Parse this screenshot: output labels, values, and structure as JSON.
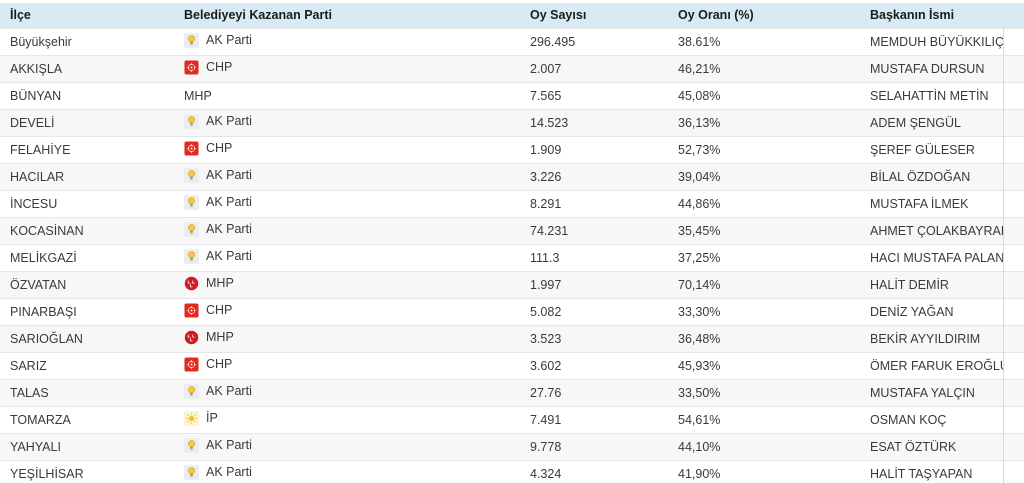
{
  "table": {
    "columns": [
      {
        "key": "district",
        "label": "İlçe"
      },
      {
        "key": "party",
        "label": "Belediyeyi Kazanan Parti"
      },
      {
        "key": "votes",
        "label": "Oy Sayısı"
      },
      {
        "key": "percent",
        "label": "Oy Oranı (%)"
      },
      {
        "key": "mayor",
        "label": "Başkanın İsmi"
      }
    ],
    "rows": [
      {
        "district": "Büyükşehir",
        "party": "AK Parti",
        "party_icon": "akparti-bulb-icon",
        "votes": "296.495",
        "percent": "38.61%",
        "mayor": "MEMDUH BÜYÜKKILIÇ"
      },
      {
        "district": "AKKIŞLA",
        "party": "CHP",
        "party_icon": "chp-flag-icon",
        "votes": "2.007",
        "percent": "46,21%",
        "mayor": "MUSTAFA DURSUN"
      },
      {
        "district": "BÜNYAN",
        "party": "MHP",
        "party_icon": "none",
        "votes": "7.565",
        "percent": "45,08%",
        "mayor": "SELAHATTİN METİN"
      },
      {
        "district": "DEVELİ",
        "party": "AK Parti",
        "party_icon": "akparti-bulb-icon",
        "votes": "14.523",
        "percent": "36,13%",
        "mayor": "ADEM ŞENGÜL"
      },
      {
        "district": "FELAHİYE",
        "party": "CHP",
        "party_icon": "chp-flag-icon",
        "votes": "1.909",
        "percent": "52,73%",
        "mayor": "ŞEREF GÜLESER"
      },
      {
        "district": "HACILAR",
        "party": "AK Parti",
        "party_icon": "akparti-bulb-icon",
        "votes": "3.226",
        "percent": "39,04%",
        "mayor": "BİLAL ÖZDOĞAN"
      },
      {
        "district": "İNCESU",
        "party": "AK Parti",
        "party_icon": "akparti-bulb-icon",
        "votes": "8.291",
        "percent": "44,86%",
        "mayor": "MUSTAFA İLMEK"
      },
      {
        "district": "KOCASİNAN",
        "party": "AK Parti",
        "party_icon": "akparti-bulb-icon",
        "votes": "74.231",
        "percent": "35,45%",
        "mayor": "AHMET ÇOLAKBAYRAKDAR"
      },
      {
        "district": "MELİKGAZİ",
        "party": "AK Parti",
        "party_icon": "akparti-bulb-icon",
        "votes": "111.3",
        "percent": "37,25%",
        "mayor": "HACI MUSTAFA PALANCIOĞLU"
      },
      {
        "district": "ÖZVATAN",
        "party": "MHP",
        "party_icon": "mhp-crescents-icon",
        "votes": "1.997",
        "percent": "70,14%",
        "mayor": "HALİT DEMİR"
      },
      {
        "district": "PINARBAŞI",
        "party": "CHP",
        "party_icon": "chp-flag-icon",
        "votes": "5.082",
        "percent": "33,30%",
        "mayor": "DENİZ YAĞAN"
      },
      {
        "district": "SARIOĞLAN",
        "party": "MHP",
        "party_icon": "mhp-crescents-icon",
        "votes": "3.523",
        "percent": "36,48%",
        "mayor": "BEKİR AYYILDIRIM"
      },
      {
        "district": "SARIZ",
        "party": "CHP",
        "party_icon": "chp-flag-icon",
        "votes": "3.602",
        "percent": "45,93%",
        "mayor": "ÖMER FARUK EROĞLU"
      },
      {
        "district": "TALAS",
        "party": "AK Parti",
        "party_icon": "akparti-bulb-icon",
        "votes": "27.76",
        "percent": "33,50%",
        "mayor": "MUSTAFA YALÇIN"
      },
      {
        "district": "TOMARZA",
        "party": "İP",
        "party_icon": "iyi-sun-icon",
        "votes": "7.491",
        "percent": "54,61%",
        "mayor": "OSMAN KOÇ"
      },
      {
        "district": "YAHYALI",
        "party": "AK Parti",
        "party_icon": "akparti-bulb-icon",
        "votes": "9.778",
        "percent": "44,10%",
        "mayor": "ESAT ÖZTÜRK"
      },
      {
        "district": "YEŞİLHİSAR",
        "party": "AK Parti",
        "party_icon": "akparti-bulb-icon",
        "votes": "4.324",
        "percent": "41,90%",
        "mayor": "HALİT TAŞYAPAN"
      }
    ]
  },
  "colors": {
    "header_bg": "#d8eaf4",
    "row_alt_bg": "#f7f7f7",
    "row_border": "#e6e6e6",
    "akparti_yellow": "#f2bb2e",
    "chp_red": "#e02b20",
    "mhp_red": "#d11a21",
    "iyi_yellow": "#f3c21c"
  }
}
